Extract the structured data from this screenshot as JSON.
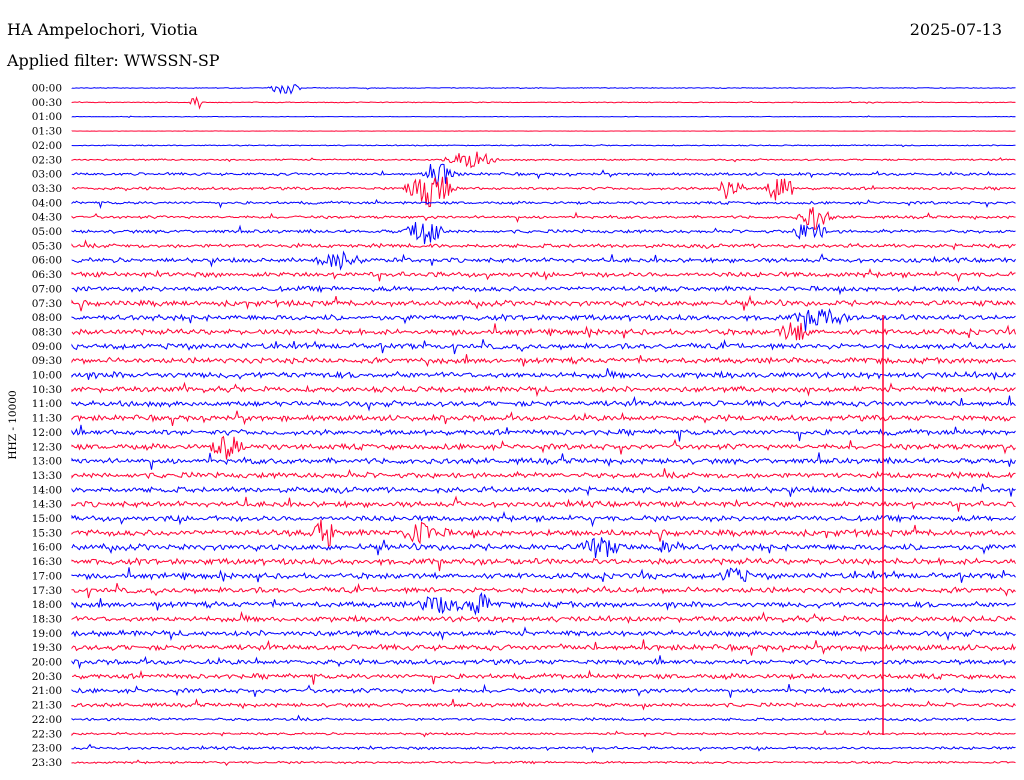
{
  "header": {
    "station": "HA Ampelochori, Viotia",
    "date": "2025-07-13",
    "filter": "Applied filter: WWSSN-SP"
  },
  "chart_data": {
    "type": "line",
    "ylabel": "HHZ - 10000",
    "colors": [
      "#0000ff",
      "#ff0033"
    ],
    "time_labels": [
      "00:00",
      "00:30",
      "01:00",
      "01:30",
      "02:00",
      "02:30",
      "03:00",
      "03:30",
      "04:00",
      "04:30",
      "05:00",
      "05:30",
      "06:00",
      "06:30",
      "07:00",
      "07:30",
      "08:00",
      "08:30",
      "09:00",
      "09:30",
      "10:00",
      "10:30",
      "11:00",
      "11:30",
      "12:00",
      "12:30",
      "13:00",
      "13:30",
      "14:00",
      "14:30",
      "15:00",
      "15:30",
      "16:00",
      "16:30",
      "17:00",
      "17:30",
      "18:00",
      "18:30",
      "19:00",
      "19:30",
      "20:00",
      "20:30",
      "21:00",
      "21:30",
      "22:00",
      "22:30",
      "23:00",
      "23:30"
    ],
    "trace_noise": [
      0.3,
      0.3,
      0.2,
      0.1,
      0.4,
      0.6,
      1.0,
      1.0,
      1.0,
      1.0,
      1.2,
      1.4,
      1.6,
      1.8,
      1.8,
      2.0,
      2.0,
      2.0,
      2.0,
      2.0,
      2.2,
      2.0,
      2.0,
      2.0,
      2.0,
      2.0,
      2.0,
      2.0,
      2.0,
      2.0,
      2.0,
      2.2,
      2.2,
      2.2,
      2.0,
      2.0,
      2.0,
      2.0,
      2.0,
      2.0,
      1.8,
      1.8,
      1.6,
      1.4,
      1.0,
      0.8,
      1.0,
      0.8
    ]
  }
}
